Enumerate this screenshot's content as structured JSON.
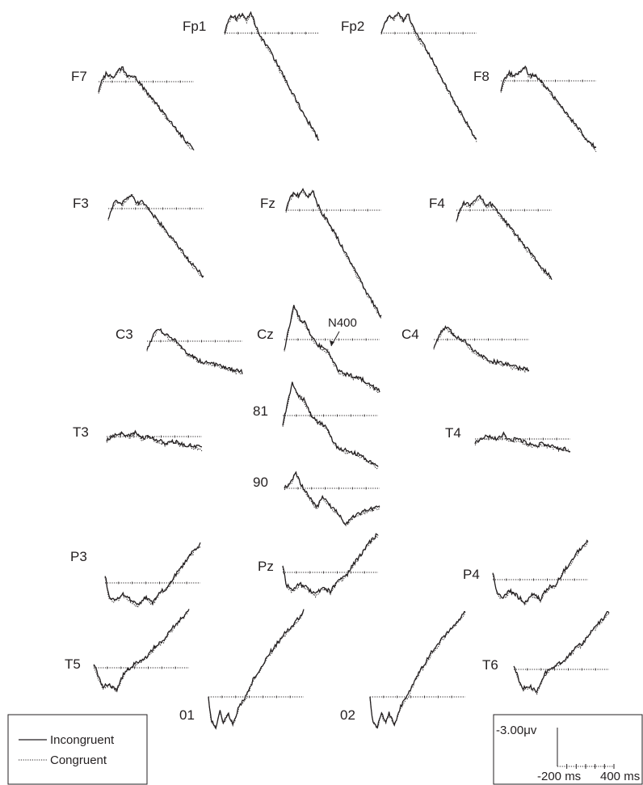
{
  "chart_data": {
    "type": "line",
    "annotation": "N400",
    "legend": {
      "position": "bottom-left",
      "entries": [
        {
          "name": "Incongruent",
          "style": "solid"
        },
        {
          "name": "Congruent",
          "style": "dotted"
        }
      ]
    },
    "scale_bar": {
      "amplitude_label": "-3.00μv",
      "time_start_label": "-200 ms",
      "time_end_label": "400 ms",
      "time_range_ms": [
        -200,
        400
      ],
      "amplitude_uv": -3.0
    },
    "x_unit": "ms",
    "y_unit": "μV",
    "channels": [
      {
        "name": "Fp1",
        "shape": "frontal_pole"
      },
      {
        "name": "Fp2",
        "shape": "frontal_pole"
      },
      {
        "name": "F7",
        "shape": "frontal"
      },
      {
        "name": "F8",
        "shape": "frontal"
      },
      {
        "name": "F3",
        "shape": "frontal"
      },
      {
        "name": "Fz",
        "shape": "frontal_pole"
      },
      {
        "name": "F4",
        "shape": "frontal"
      },
      {
        "name": "C3",
        "shape": "central"
      },
      {
        "name": "Cz",
        "shape": "central_mid"
      },
      {
        "name": "C4",
        "shape": "central"
      },
      {
        "name": "81",
        "shape": "central_mid"
      },
      {
        "name": "T3",
        "shape": "temporal_flat"
      },
      {
        "name": "T4",
        "shape": "temporal_flat"
      },
      {
        "name": "90",
        "shape": "parietal_mid"
      },
      {
        "name": "P3",
        "shape": "parietal"
      },
      {
        "name": "Pz",
        "shape": "parietal"
      },
      {
        "name": "P4",
        "shape": "parietal"
      },
      {
        "name": "T5",
        "shape": "occipital"
      },
      {
        "name": "T6",
        "shape": "occipital"
      },
      {
        "name": "01",
        "shape": "occipital_deep"
      },
      {
        "name": "02",
        "shape": "occipital_deep"
      }
    ]
  }
}
